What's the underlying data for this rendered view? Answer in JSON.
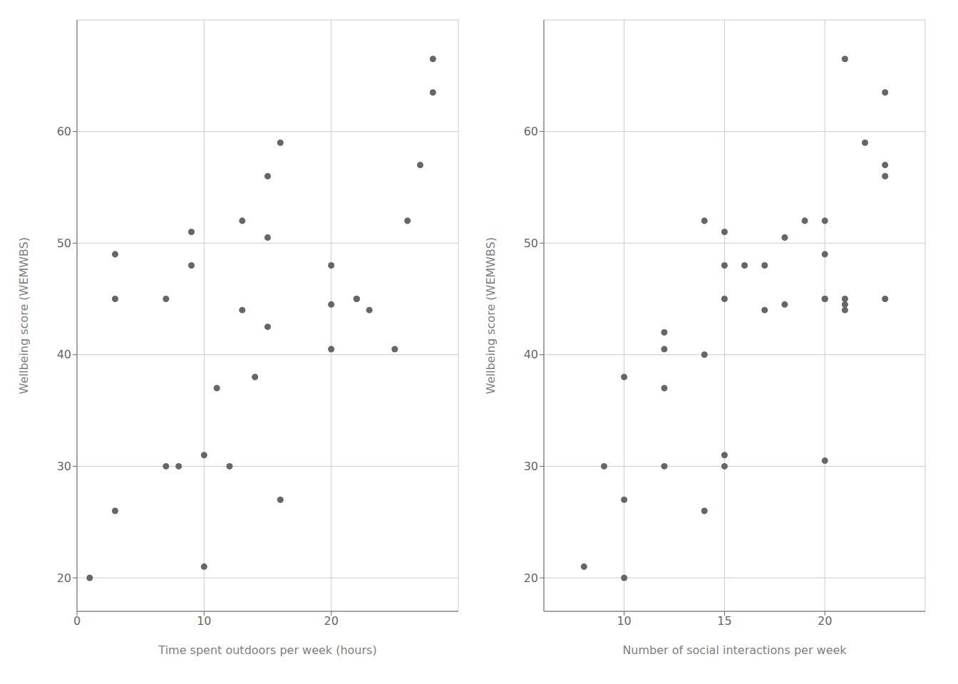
{
  "chart_data": [
    {
      "type": "scatter",
      "x": [
        1,
        3,
        3,
        3,
        7,
        7,
        8,
        9,
        9,
        10,
        10,
        11,
        12,
        13,
        13,
        14,
        15,
        15,
        15,
        16,
        16,
        20,
        20,
        20,
        22,
        22,
        23,
        25,
        26,
        27,
        28,
        28
      ],
      "values": [
        20,
        26,
        45,
        49,
        30,
        45,
        30,
        48,
        51,
        21,
        31,
        37,
        30,
        44,
        52,
        38,
        42.5,
        50.5,
        56,
        27,
        59,
        40.5,
        44.5,
        48,
        45,
        45,
        44,
        40.5,
        52,
        57,
        66.5,
        63.5
      ],
      "xlabel": "Time spent outdoors per week (hours)",
      "ylabel": "Wellbeing score (WEMWBS)",
      "xlim": [
        0,
        30
      ],
      "ylim": [
        17,
        70
      ],
      "xticks": [
        0,
        10,
        20
      ],
      "yticks": [
        20,
        30,
        40,
        50,
        60
      ],
      "color": "#666666",
      "grid": true
    },
    {
      "type": "scatter",
      "x": [
        8,
        9,
        10,
        10,
        10,
        12,
        12,
        12,
        12,
        14,
        14,
        14,
        15,
        15,
        15,
        15,
        15,
        16,
        17,
        17,
        18,
        18,
        19,
        20,
        20,
        20,
        20,
        20,
        21,
        21,
        21,
        21,
        22,
        23,
        23,
        23,
        23
      ],
      "values": [
        21,
        30,
        20,
        27,
        38,
        30,
        37,
        40.5,
        42,
        26,
        40,
        52,
        30,
        31,
        45,
        48,
        51,
        48,
        44,
        48,
        44.5,
        50.5,
        52,
        30.5,
        45,
        45,
        49,
        52,
        44,
        44.5,
        45,
        66.5,
        59,
        45,
        56,
        57,
        63.5
      ],
      "xlabel": "Number of social interactions per week",
      "ylabel": "Wellbeing score (WEMWBS)",
      "xlim": [
        6,
        25
      ],
      "ylim": [
        17,
        70
      ],
      "xticks": [
        10,
        15,
        20
      ],
      "yticks": [
        20,
        30,
        40,
        50,
        60
      ],
      "color": "#666666",
      "grid": true
    }
  ]
}
